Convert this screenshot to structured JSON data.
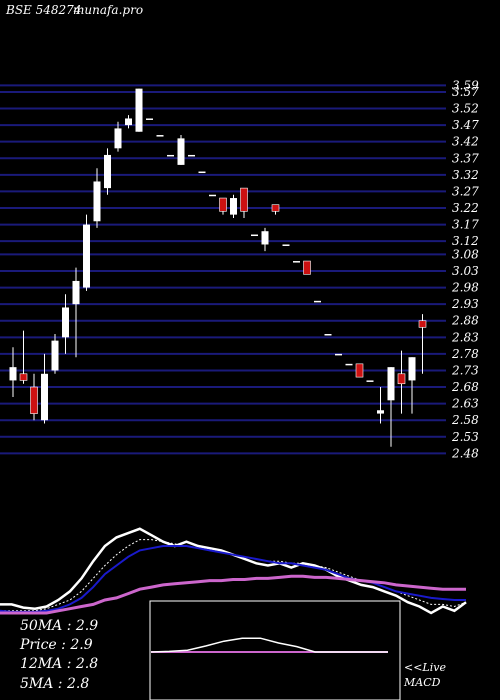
{
  "header": {
    "symbol": "BSE 548274",
    "site": "munafa.pro"
  },
  "legend": {
    "ma50": "50MA : 2.9",
    "price": "Price  : 2.9",
    "ma12": "12MA : 2.8",
    "ma5": "5MA : 2.8"
  },
  "macd_label": {
    "live": "<<Live",
    "name": "MACD"
  },
  "colors": {
    "background": "#000000",
    "grid": "#1a1a7a",
    "up_candle": "#ffffff",
    "down_candle": "#cc1111",
    "ma_white": "#ffffff",
    "ma_blue": "#1a1acc",
    "ma_pink": "#cc66cc",
    "ma_dotted": "#ffffff",
    "macd_box": "#ffffff",
    "macd_line": "#ffffff",
    "macd_signal": "#cc66cc"
  },
  "chart_data": [
    {
      "type": "candlestick",
      "ylim": [
        2.46,
        3.6
      ],
      "y_ticks": [
        "2.48",
        "2.53",
        "2.58",
        "2.63",
        "2.68",
        "2.73",
        "2.78",
        "2.83",
        "2.88",
        "2.93",
        "2.98",
        "3.03",
        "3.08",
        "3.12",
        "3.17",
        "3.22",
        "3.27",
        "3.32",
        "3.37",
        "3.42",
        "3.47",
        "3.52",
        "3.57",
        "3.59"
      ],
      "candles": [
        {
          "o": 2.7,
          "h": 2.8,
          "l": 2.65,
          "c": 2.74
        },
        {
          "o": 2.72,
          "h": 2.85,
          "l": 2.69,
          "c": 2.7
        },
        {
          "o": 2.68,
          "h": 2.72,
          "l": 2.58,
          "c": 2.6
        },
        {
          "o": 2.58,
          "h": 2.78,
          "l": 2.57,
          "c": 2.72
        },
        {
          "o": 2.73,
          "h": 2.84,
          "l": 2.72,
          "c": 2.82
        },
        {
          "o": 2.83,
          "h": 2.96,
          "l": 2.78,
          "c": 2.92
        },
        {
          "o": 2.93,
          "h": 3.04,
          "l": 2.77,
          "c": 3.0
        },
        {
          "o": 2.98,
          "h": 3.2,
          "l": 2.97,
          "c": 3.17
        },
        {
          "o": 3.18,
          "h": 3.34,
          "l": 3.16,
          "c": 3.3
        },
        {
          "o": 3.28,
          "h": 3.4,
          "l": 3.26,
          "c": 3.38
        },
        {
          "o": 3.4,
          "h": 3.48,
          "l": 3.39,
          "c": 3.46
        },
        {
          "o": 3.47,
          "h": 3.5,
          "l": 3.46,
          "c": 3.49
        },
        {
          "o": 3.45,
          "h": 3.58,
          "l": 3.45,
          "c": 3.58
        },
        {
          "o": 3.49,
          "h": 3.49,
          "l": 3.49,
          "c": 3.49
        },
        {
          "o": 3.44,
          "h": 3.44,
          "l": 3.44,
          "c": 3.44
        },
        {
          "o": 3.38,
          "h": 3.38,
          "l": 3.38,
          "c": 3.38
        },
        {
          "o": 3.35,
          "h": 3.44,
          "l": 3.35,
          "c": 3.43
        },
        {
          "o": 3.38,
          "h": 3.38,
          "l": 3.38,
          "c": 3.38
        },
        {
          "o": 3.33,
          "h": 3.33,
          "l": 3.33,
          "c": 3.33
        },
        {
          "o": 3.26,
          "h": 3.26,
          "l": 3.26,
          "c": 3.26
        },
        {
          "o": 3.25,
          "h": 3.25,
          "l": 3.2,
          "c": 3.21
        },
        {
          "o": 3.2,
          "h": 3.26,
          "l": 3.19,
          "c": 3.25
        },
        {
          "o": 3.28,
          "h": 3.28,
          "l": 3.19,
          "c": 3.21
        },
        {
          "o": 3.14,
          "h": 3.14,
          "l": 3.14,
          "c": 3.14
        },
        {
          "o": 3.11,
          "h": 3.16,
          "l": 3.09,
          "c": 3.15
        },
        {
          "o": 3.23,
          "h": 3.23,
          "l": 3.2,
          "c": 3.21
        },
        {
          "o": 3.11,
          "h": 3.11,
          "l": 3.11,
          "c": 3.11
        },
        {
          "o": 3.06,
          "h": 3.06,
          "l": 3.06,
          "c": 3.06
        },
        {
          "o": 3.06,
          "h": 3.06,
          "l": 3.02,
          "c": 3.02
        },
        {
          "o": 2.94,
          "h": 2.94,
          "l": 2.94,
          "c": 2.94
        },
        {
          "o": 2.84,
          "h": 2.84,
          "l": 2.84,
          "c": 2.84
        },
        {
          "o": 2.78,
          "h": 2.78,
          "l": 2.78,
          "c": 2.78
        },
        {
          "o": 2.75,
          "h": 2.75,
          "l": 2.75,
          "c": 2.75
        },
        {
          "o": 2.75,
          "h": 2.75,
          "l": 2.71,
          "c": 2.71
        },
        {
          "o": 2.7,
          "h": 2.7,
          "l": 2.7,
          "c": 2.7
        },
        {
          "o": 2.6,
          "h": 2.68,
          "l": 2.57,
          "c": 2.61
        },
        {
          "o": 2.64,
          "h": 2.74,
          "l": 2.5,
          "c": 2.74
        },
        {
          "o": 2.72,
          "h": 2.79,
          "l": 2.6,
          "c": 2.69
        },
        {
          "o": 2.7,
          "h": 2.77,
          "l": 2.6,
          "c": 2.77
        },
        {
          "o": 2.88,
          "h": 2.9,
          "l": 2.72,
          "c": 2.86
        }
      ]
    },
    {
      "type": "line",
      "series": [
        {
          "values": [
            0.08,
            0.08,
            0.05,
            0.04,
            0.06,
            0.12,
            0.2,
            0.32,
            0.48,
            0.62,
            0.7,
            0.74,
            0.78,
            0.72,
            0.66,
            0.62,
            0.66,
            0.62,
            0.6,
            0.58,
            0.54,
            0.5,
            0.46,
            0.44,
            0.46,
            0.42,
            0.46,
            0.44,
            0.4,
            0.34,
            0.3,
            0.26,
            0.24,
            0.2,
            0.16,
            0.1,
            0.06,
            0.0,
            0.06,
            0.02,
            0.1
          ]
        },
        {
          "values": [
            0.02,
            0.02,
            0.02,
            0.02,
            0.04,
            0.08,
            0.12,
            0.2,
            0.32,
            0.44,
            0.54,
            0.62,
            0.68,
            0.68,
            0.66,
            0.64,
            0.62,
            0.6,
            0.58,
            0.56,
            0.54,
            0.52,
            0.5,
            0.48,
            0.48,
            0.46,
            0.46,
            0.44,
            0.42,
            0.38,
            0.34,
            0.3,
            0.28,
            0.24,
            0.2,
            0.16,
            0.12,
            0.08,
            0.08,
            0.06,
            0.1
          ]
        },
        {
          "values": [
            0.02,
            0.01,
            0.01,
            0.01,
            0.02,
            0.04,
            0.08,
            0.14,
            0.24,
            0.36,
            0.44,
            0.52,
            0.58,
            0.6,
            0.62,
            0.62,
            0.62,
            0.6,
            0.58,
            0.56,
            0.54,
            0.52,
            0.5,
            0.48,
            0.46,
            0.46,
            0.44,
            0.42,
            0.4,
            0.36,
            0.32,
            0.3,
            0.28,
            0.24,
            0.2,
            0.18,
            0.16,
            0.14,
            0.13,
            0.12,
            0.12
          ]
        },
        {
          "values": [
            0.0,
            0.0,
            0.0,
            0.0,
            0.0,
            0.02,
            0.04,
            0.06,
            0.08,
            0.12,
            0.14,
            0.18,
            0.22,
            0.24,
            0.26,
            0.27,
            0.28,
            0.29,
            0.3,
            0.3,
            0.31,
            0.31,
            0.32,
            0.32,
            0.33,
            0.34,
            0.34,
            0.33,
            0.33,
            0.32,
            0.31,
            0.3,
            0.29,
            0.28,
            0.26,
            0.25,
            0.24,
            0.23,
            0.22,
            0.22,
            0.22
          ]
        }
      ]
    },
    {
      "type": "line",
      "series": [
        {
          "values": [
            0.0,
            0.02,
            0.06,
            0.2,
            0.36,
            0.46,
            0.46,
            0.3,
            0.18,
            0.0,
            0.0,
            0.0,
            0.0,
            0.0
          ]
        },
        {
          "values": [
            0.0,
            0.0,
            0.0,
            0.0,
            0.0,
            0.0,
            0.0,
            0.0,
            0.0,
            0.0,
            0.0,
            0.0,
            0.0,
            0.0
          ]
        }
      ]
    }
  ]
}
